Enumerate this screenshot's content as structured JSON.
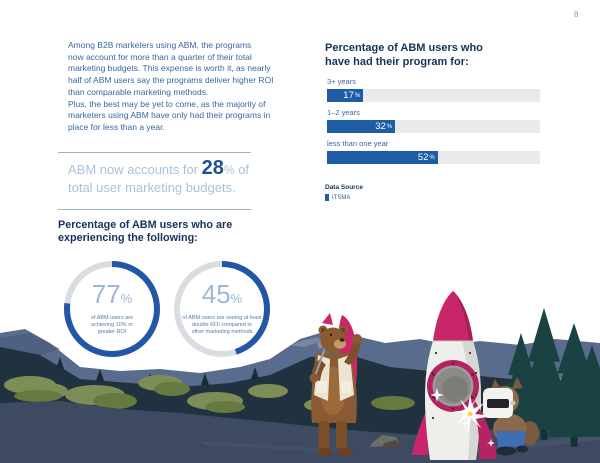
{
  "page": {
    "number": "8"
  },
  "colors": {
    "heading_navy": "#16325c",
    "body_blue": "#3a67a0",
    "callout_light_blue": "#a9c2dc",
    "callout_value_blue": "#1d518f",
    "donut_number_blue": "#9db7d6",
    "magenta_accent": "#c9256b",
    "page_background": "#ffffff"
  },
  "left_column": {
    "intro_paragraph": "Among B2B marketers using ABM, the programs\nnow account for more than a quarter of their total\nmarketing budgets. This expense is worth it, as nearly\nhalf of ABM users say the programs deliver higher ROI\nthan comparable marketing methods.\nPlus, the best may be yet to come, as the majority of\nmarketers using ABM have only had their programs in\nplace for less than a year.",
    "callout": {
      "pre": "ABM now accounts for ",
      "value": "28",
      "unit": "%",
      "suffix": " of",
      "line2": "total user marketing budgets."
    },
    "donut_section_heading": "Percentage of ABM users who are\nexperiencing the following:"
  },
  "right_column": {
    "datasource_label": "Data Source",
    "datasource_value": "ITSMA"
  },
  "chart_data": [
    {
      "type": "donut",
      "value": 77,
      "unit": "%",
      "caption": "of ABM users are\nachieving 10% or\ngreater ROI",
      "ring_color": "#2157a4",
      "track_color": "#d9dde1",
      "start_angle": "top",
      "direction": "clockwise"
    },
    {
      "type": "donut",
      "value": 45,
      "unit": "%",
      "caption": "of ABM users are seeing at least\ndouble ROI compared to\nother marketing methods",
      "ring_color": "#2157a4",
      "track_color": "#d9dde1",
      "start_angle": "top",
      "direction": "clockwise"
    },
    {
      "type": "bar",
      "orientation": "horizontal",
      "title": "Percentage of ABM users who\nhave had their program for:",
      "categories": [
        "3+ years",
        "1–2 years",
        "less than one year"
      ],
      "values": [
        17,
        32,
        52
      ],
      "unit": "%",
      "xlim": [
        0,
        100
      ],
      "bar_color": "#1e5ca6",
      "track_color": "#e9eaeb",
      "value_label_position": "inside-right",
      "value_label_color": "#ffffff",
      "grid": false,
      "legend_position": "below",
      "legend_items": [
        "ITSMA"
      ]
    }
  ]
}
